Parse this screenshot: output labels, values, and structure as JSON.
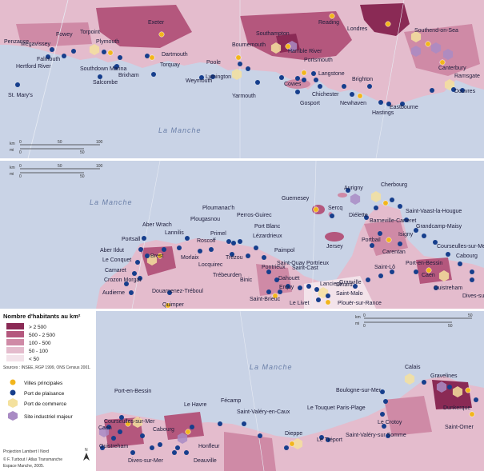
{
  "colors": {
    "sea": "#c9d3e6",
    "density_5": "#8a2a55",
    "density_4": "#b4577d",
    "density_3": "#cf8aa6",
    "density_2": "#e4bccd",
    "density_1": "#f3e3ea",
    "city_dot": "#f2b51c",
    "marina_dot": "#163e8c",
    "commerce_hex": "#f4e19e",
    "industrial_hex": "#a98bc4"
  },
  "sea_labels": [
    "La Manche",
    "La Manche",
    "La Manche"
  ],
  "panel1": {
    "cities": [
      "Penzance",
      "Megavissey",
      "Falmouth",
      "Hertford River",
      "Fowey",
      "Torpoint",
      "Plymouth",
      "Southdown Marina",
      "Salcombe",
      "Brixham",
      "Exeter",
      "Dartmouth",
      "Torquay",
      "Weymouth",
      "Poole",
      "Bournemouth",
      "Lymington",
      "Yarmouth",
      "Southampton",
      "Hamble River",
      "Portsmouth",
      "Cowes",
      "Gosport",
      "Langstone",
      "Chichester",
      "Reading",
      "Londres",
      "Southend-on-Sea",
      "Brighton",
      "Newhaven",
      "Hastings",
      "Eastbourne",
      "Canterbury",
      "Ramsgate",
      "Douvres",
      "St. Mary's"
    ],
    "scale_km": [
      "km",
      "0",
      "50",
      "100"
    ],
    "scale_mi": [
      "mi",
      "0",
      "50"
    ]
  },
  "panel2": {
    "cities": [
      "Aurigny",
      "Cherbourg",
      "Guernesey",
      "Sercq",
      "Saint-Vaast-la-Hougue",
      "Diélette",
      "Barneville-Carteret",
      "Isigny",
      "Grandcamp-Maisy",
      "Aber Wrach",
      "Lannilis",
      "Portsall",
      "Aber Ildut",
      "Le Conquet",
      "Camaret",
      "Crozon Morgat",
      "Audierne",
      "Brest",
      "Roscoff",
      "Plougasnou",
      "Primel",
      "Perros-Guirec",
      "Ploumanac'h",
      "Morlaix",
      "Locquirec",
      "Trébeurden",
      "Trézou",
      "Lézardrieux",
      "Port Blanc",
      "Paimpol",
      "Pontrieux",
      "Binic",
      "Saint-Quay Portrieux",
      "Saint-Cast",
      "Dahouët",
      "Erquy",
      "Lancieux",
      "Dinard",
      "Saint-Brieuc",
      "Le Livet",
      "Saint-Malo",
      "Plouër-sur-Rance",
      "Douarnenez-Tréboul",
      "Quimper",
      "Jersey",
      "Portbail",
      "Carentan",
      "Saint-Lô",
      "Granville",
      "Courseulles-sur-Mer",
      "Port-en-Bessin",
      "Caen",
      "Cabourg",
      "Ouistreham",
      "Dives-sur-Mer"
    ],
    "scale_km": [
      "km",
      "0",
      "50",
      "100"
    ],
    "scale_mi": [
      "mi",
      "0",
      "50"
    ]
  },
  "panel3": {
    "cities": [
      "Calais",
      "Gravelines",
      "Boulogne-sur-Mer",
      "Dunkerque",
      "Le Touquet Paris-Plage",
      "Le Crotoy",
      "Saint-Valéry-sur Somme",
      "Saint-Omer",
      "Le Tréport",
      "Dieppe",
      "Saint-Valéry-en-Caux",
      "Fécamp",
      "Le Havre",
      "Honfleur",
      "Deauville",
      "Port-en-Bessin",
      "Courseulles-sur-Mer",
      "Caen",
      "Cabourg",
      "Ouistreham",
      "Dives-sur-Mer"
    ],
    "scale_km": [
      "km",
      "0",
      "50"
    ],
    "scale_mi": [
      "mi",
      "0",
      "50"
    ]
  },
  "legend": {
    "title": "Nombre d'habitants au km²",
    "classes": [
      "> 2 500",
      "500 - 2 500",
      "100 - 500",
      "50 - 100",
      "< 50"
    ],
    "sources": "Sources : INSEE, RGP 1999, ONS Census 2001.",
    "symbols": [
      "Villes principales",
      "Port de plaisance",
      "Port de commerce",
      "Site industriel majeur"
    ]
  },
  "credits": {
    "projection": "Projection Lambert I Nord",
    "author": "© F. Turbout / Atlas Transmanche",
    "org": "Espace Manche, 2005.",
    "north": "N"
  }
}
